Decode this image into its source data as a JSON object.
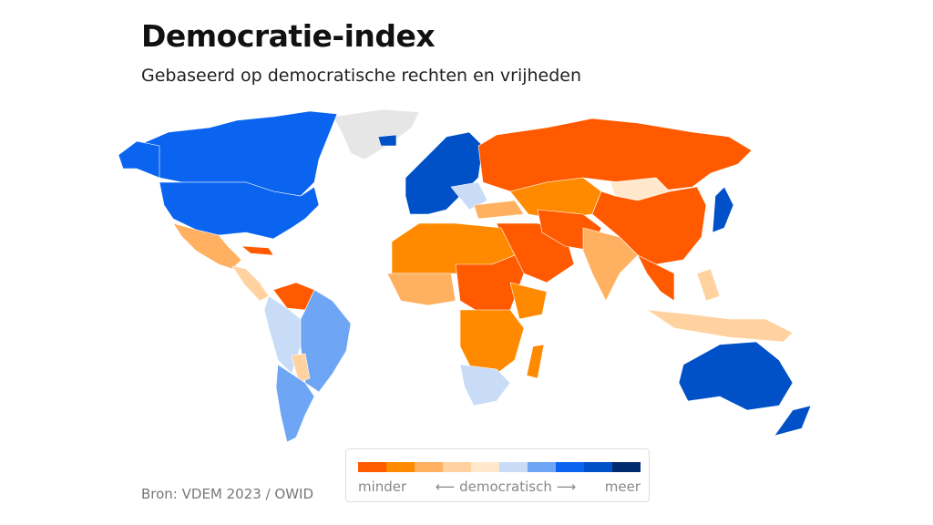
{
  "title": "Democratie-index",
  "subtitle": "Gebaseerd op democratische rechten en vrijheden",
  "source": "Bron: VDEM 2023 / OWID",
  "legend": {
    "low": "minder",
    "middle": "⟵ democratisch ⟶",
    "high": "meer",
    "colors": [
      "#ff5a00",
      "#ff8a00",
      "#ffb060",
      "#ffd2a0",
      "#ffe8cc",
      "#c8dcf8",
      "#6ea6f5",
      "#0a64f0",
      "#0050c8",
      "#002a6e"
    ]
  },
  "no_data_color": "#e6e6e6"
}
